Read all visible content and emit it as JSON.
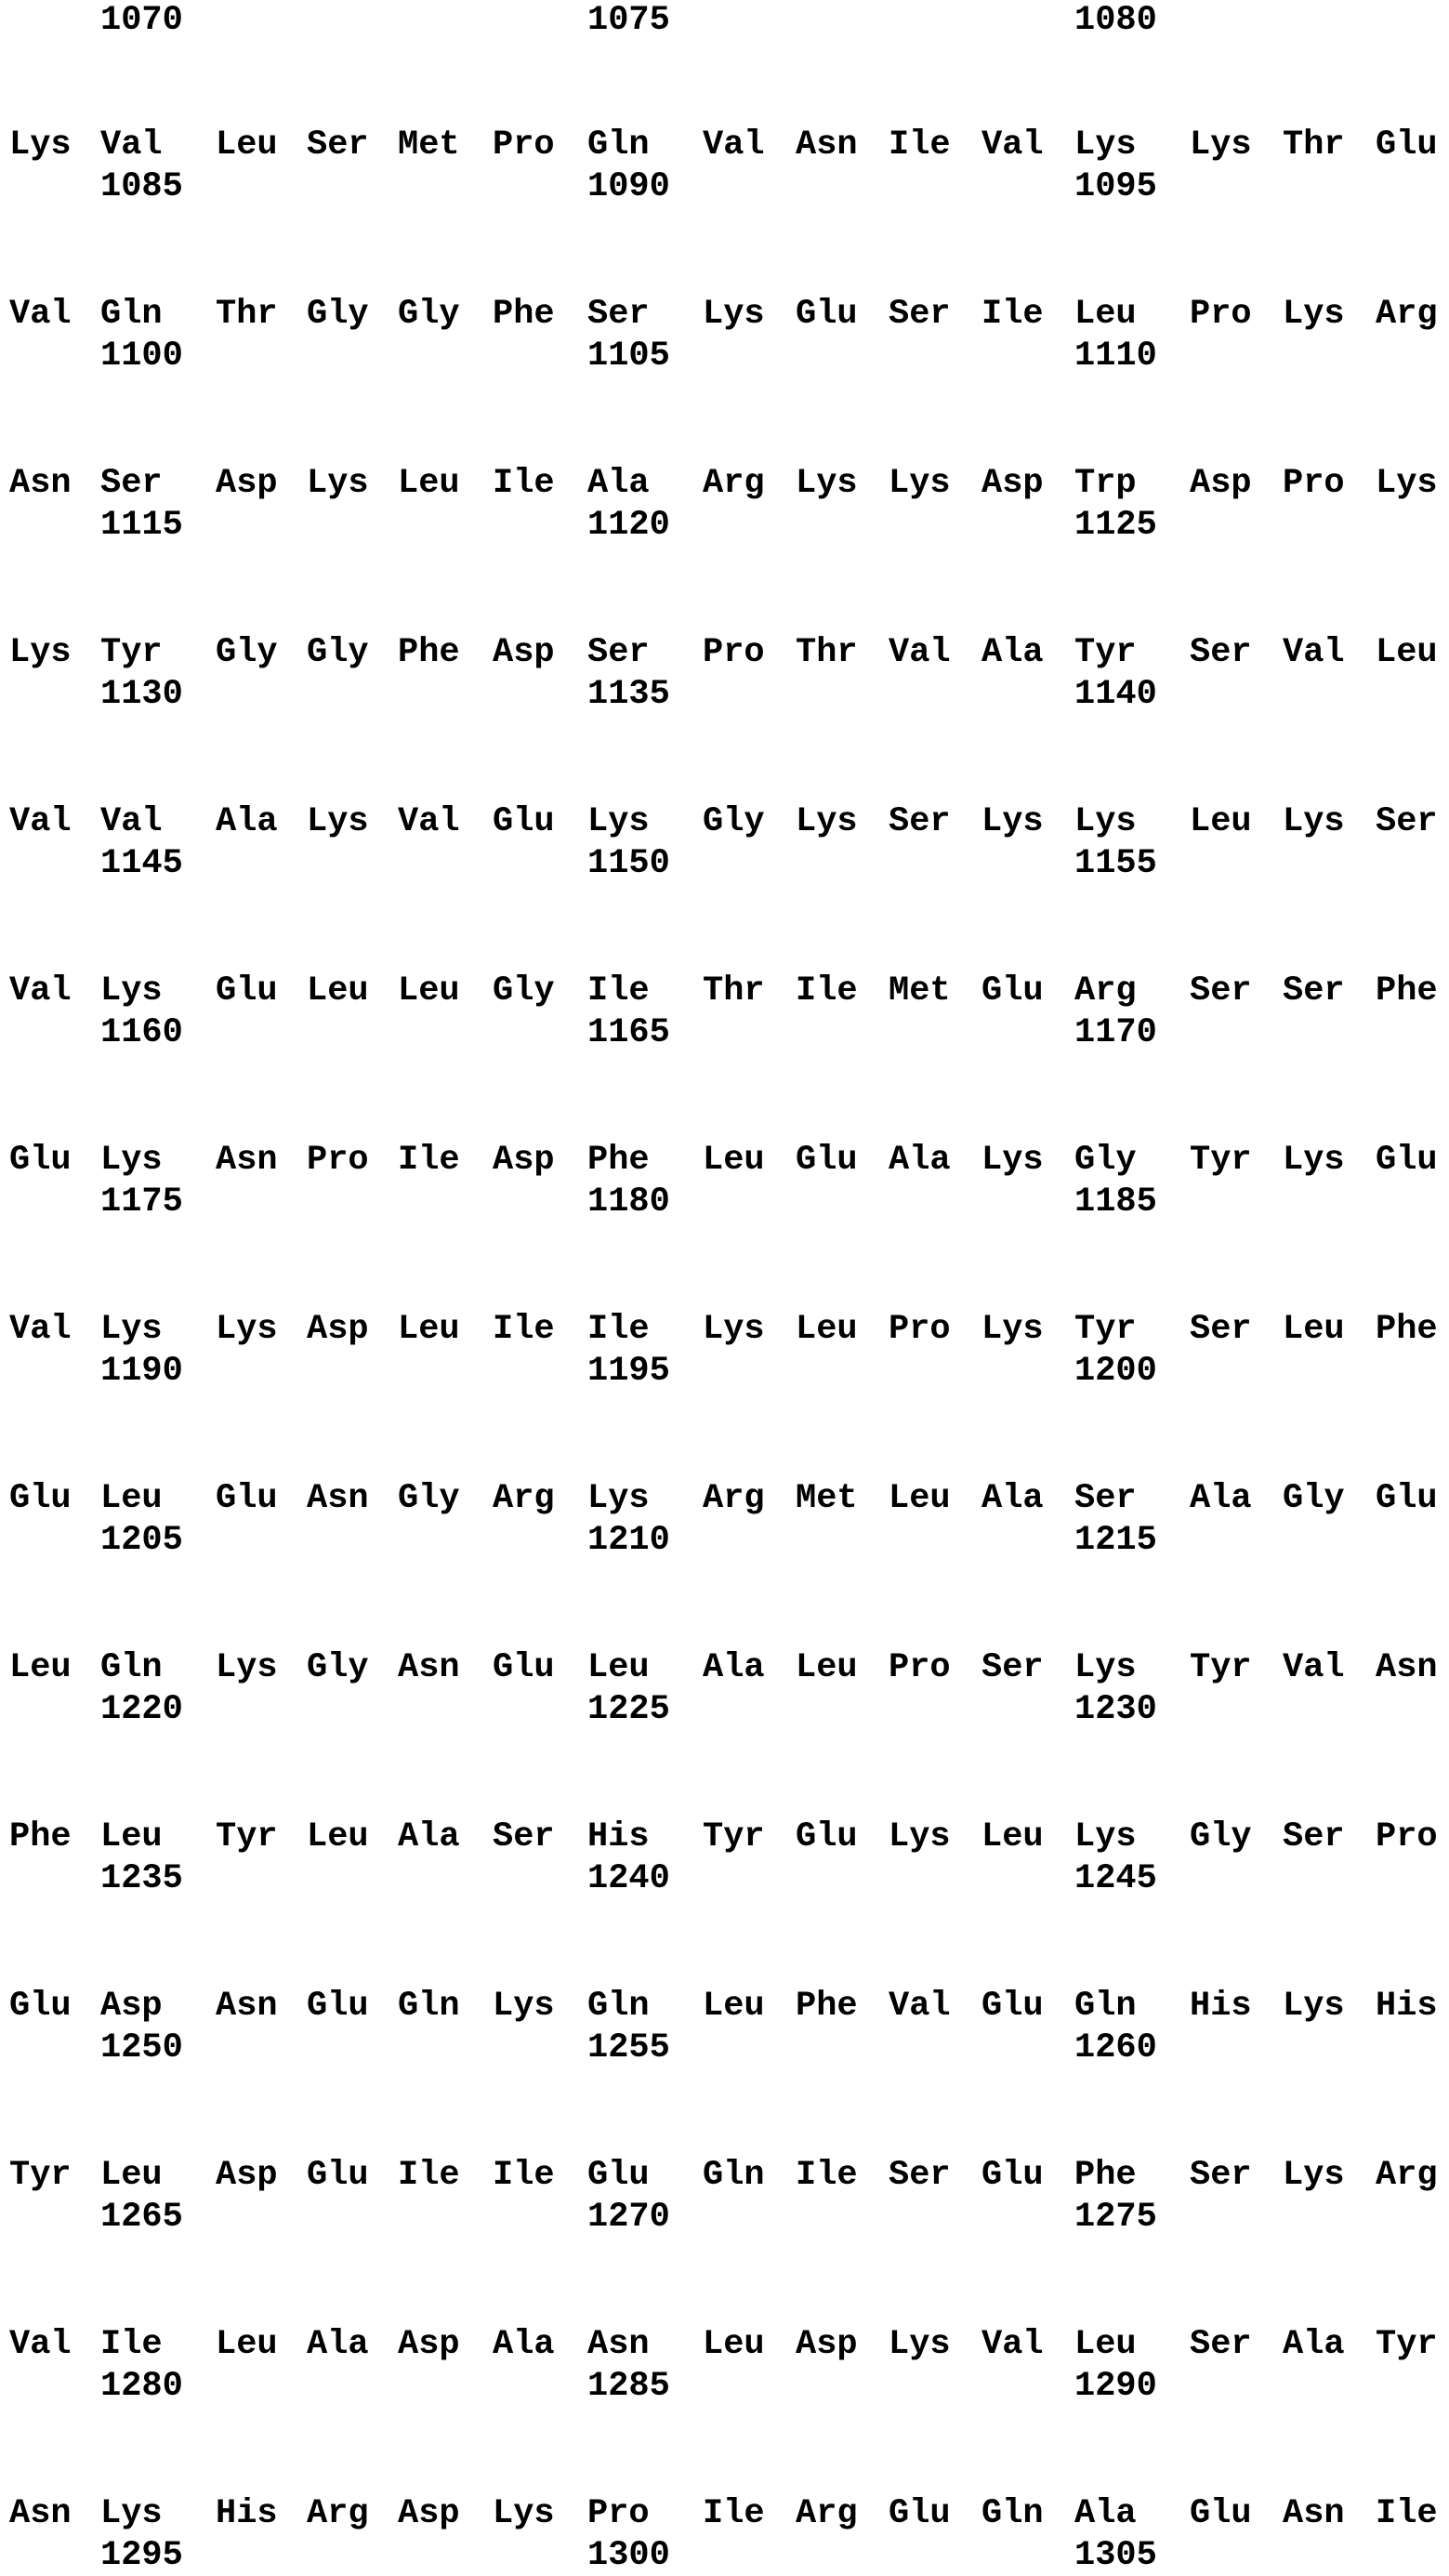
{
  "header_numbers": [
    "1070",
    "1075",
    "1080"
  ],
  "blocks": [
    {
      "residues": [
        "Lys",
        "Val",
        "Leu",
        "Ser",
        "Met",
        "Pro",
        "Gln",
        "Val",
        "Asn",
        "Ile",
        "Val",
        "Lys",
        "Lys",
        "Thr",
        "Glu"
      ],
      "numbers": [
        "1085",
        "1090",
        "1095"
      ]
    },
    {
      "residues": [
        "Val",
        "Gln",
        "Thr",
        "Gly",
        "Gly",
        "Phe",
        "Ser",
        "Lys",
        "Glu",
        "Ser",
        "Ile",
        "Leu",
        "Pro",
        "Lys",
        "Arg"
      ],
      "numbers": [
        "1100",
        "1105",
        "1110"
      ]
    },
    {
      "residues": [
        "Asn",
        "Ser",
        "Asp",
        "Lys",
        "Leu",
        "Ile",
        "Ala",
        "Arg",
        "Lys",
        "Lys",
        "Asp",
        "Trp",
        "Asp",
        "Pro",
        "Lys"
      ],
      "numbers": [
        "1115",
        "1120",
        "1125"
      ]
    },
    {
      "residues": [
        "Lys",
        "Tyr",
        "Gly",
        "Gly",
        "Phe",
        "Asp",
        "Ser",
        "Pro",
        "Thr",
        "Val",
        "Ala",
        "Tyr",
        "Ser",
        "Val",
        "Leu"
      ],
      "numbers": [
        "1130",
        "1135",
        "1140"
      ]
    },
    {
      "residues": [
        "Val",
        "Val",
        "Ala",
        "Lys",
        "Val",
        "Glu",
        "Lys",
        "Gly",
        "Lys",
        "Ser",
        "Lys",
        "Lys",
        "Leu",
        "Lys",
        "Ser"
      ],
      "numbers": [
        "1145",
        "1150",
        "1155"
      ]
    },
    {
      "residues": [
        "Val",
        "Lys",
        "Glu",
        "Leu",
        "Leu",
        "Gly",
        "Ile",
        "Thr",
        "Ile",
        "Met",
        "Glu",
        "Arg",
        "Ser",
        "Ser",
        "Phe"
      ],
      "numbers": [
        "1160",
        "1165",
        "1170"
      ]
    },
    {
      "residues": [
        "Glu",
        "Lys",
        "Asn",
        "Pro",
        "Ile",
        "Asp",
        "Phe",
        "Leu",
        "Glu",
        "Ala",
        "Lys",
        "Gly",
        "Tyr",
        "Lys",
        "Glu"
      ],
      "numbers": [
        "1175",
        "1180",
        "1185"
      ]
    },
    {
      "residues": [
        "Val",
        "Lys",
        "Lys",
        "Asp",
        "Leu",
        "Ile",
        "Ile",
        "Lys",
        "Leu",
        "Pro",
        "Lys",
        "Tyr",
        "Ser",
        "Leu",
        "Phe"
      ],
      "numbers": [
        "1190",
        "1195",
        "1200"
      ]
    },
    {
      "residues": [
        "Glu",
        "Leu",
        "Glu",
        "Asn",
        "Gly",
        "Arg",
        "Lys",
        "Arg",
        "Met",
        "Leu",
        "Ala",
        "Ser",
        "Ala",
        "Gly",
        "Glu"
      ],
      "numbers": [
        "1205",
        "1210",
        "1215"
      ]
    },
    {
      "residues": [
        "Leu",
        "Gln",
        "Lys",
        "Gly",
        "Asn",
        "Glu",
        "Leu",
        "Ala",
        "Leu",
        "Pro",
        "Ser",
        "Lys",
        "Tyr",
        "Val",
        "Asn"
      ],
      "numbers": [
        "1220",
        "1225",
        "1230"
      ]
    },
    {
      "residues": [
        "Phe",
        "Leu",
        "Tyr",
        "Leu",
        "Ala",
        "Ser",
        "His",
        "Tyr",
        "Glu",
        "Lys",
        "Leu",
        "Lys",
        "Gly",
        "Ser",
        "Pro"
      ],
      "numbers": [
        "1235",
        "1240",
        "1245"
      ]
    },
    {
      "residues": [
        "Glu",
        "Asp",
        "Asn",
        "Glu",
        "Gln",
        "Lys",
        "Gln",
        "Leu",
        "Phe",
        "Val",
        "Glu",
        "Gln",
        "His",
        "Lys",
        "His"
      ],
      "numbers": [
        "1250",
        "1255",
        "1260"
      ]
    },
    {
      "residues": [
        "Tyr",
        "Leu",
        "Asp",
        "Glu",
        "Ile",
        "Ile",
        "Glu",
        "Gln",
        "Ile",
        "Ser",
        "Glu",
        "Phe",
        "Ser",
        "Lys",
        "Arg"
      ],
      "numbers": [
        "1265",
        "1270",
        "1275"
      ]
    },
    {
      "residues": [
        "Val",
        "Ile",
        "Leu",
        "Ala",
        "Asp",
        "Ala",
        "Asn",
        "Leu",
        "Asp",
        "Lys",
        "Val",
        "Leu",
        "Ser",
        "Ala",
        "Tyr"
      ],
      "numbers": [
        "1280",
        "1285",
        "1290"
      ]
    },
    {
      "residues": [
        "Asn",
        "Lys",
        "His",
        "Arg",
        "Asp",
        "Lys",
        "Pro",
        "Ile",
        "Arg",
        "Glu",
        "Gln",
        "Ala",
        "Glu",
        "Asn",
        "Ile"
      ],
      "numbers": [
        "1295",
        "1300",
        "1305"
      ]
    }
  ]
}
